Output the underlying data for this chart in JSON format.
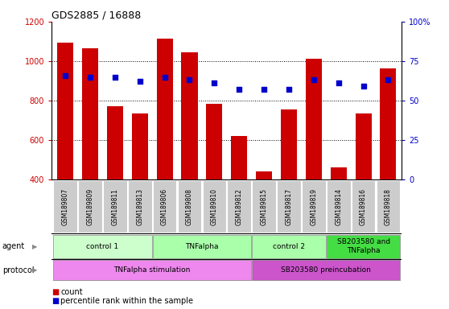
{
  "title": "GDS2885 / 16888",
  "samples": [
    "GSM189807",
    "GSM189809",
    "GSM189811",
    "GSM189813",
    "GSM189806",
    "GSM189808",
    "GSM189810",
    "GSM189812",
    "GSM189815",
    "GSM189817",
    "GSM189819",
    "GSM189814",
    "GSM189816",
    "GSM189818"
  ],
  "counts": [
    1095,
    1065,
    770,
    735,
    1115,
    1045,
    785,
    620,
    440,
    755,
    1010,
    460,
    735,
    965
  ],
  "percentile_ranks": [
    66,
    65,
    65,
    62,
    65,
    63,
    61,
    57,
    57,
    57,
    63,
    61,
    59,
    63
  ],
  "ylim_left": [
    400,
    1200
  ],
  "ylim_right": [
    0,
    100
  ],
  "y_ticks_left": [
    400,
    600,
    800,
    1000,
    1200
  ],
  "y_ticks_right": [
    0,
    25,
    50,
    75,
    100
  ],
  "bar_color": "#cc0000",
  "dot_color": "#0000cc",
  "agent_groups": [
    {
      "label": "control 1",
      "start": 0,
      "end": 4,
      "color": "#ccffcc"
    },
    {
      "label": "TNFalpha",
      "start": 4,
      "end": 8,
      "color": "#aaffaa"
    },
    {
      "label": "control 2",
      "start": 8,
      "end": 11,
      "color": "#aaffaa"
    },
    {
      "label": "SB203580 and\nTNFalpha",
      "start": 11,
      "end": 14,
      "color": "#44dd44"
    }
  ],
  "protocol_groups": [
    {
      "label": "TNFalpha stimulation",
      "start": 0,
      "end": 8,
      "color": "#ee88ee"
    },
    {
      "label": "SB203580 preincubation",
      "start": 8,
      "end": 14,
      "color": "#cc55cc"
    }
  ],
  "legend_count_color": "#cc0000",
  "legend_dot_color": "#0000cc",
  "tick_label_color_left": "#cc0000",
  "tick_label_color_right": "#0000cc",
  "sample_label_bg": "#cccccc",
  "gridline_vals": [
    600,
    800,
    1000
  ]
}
